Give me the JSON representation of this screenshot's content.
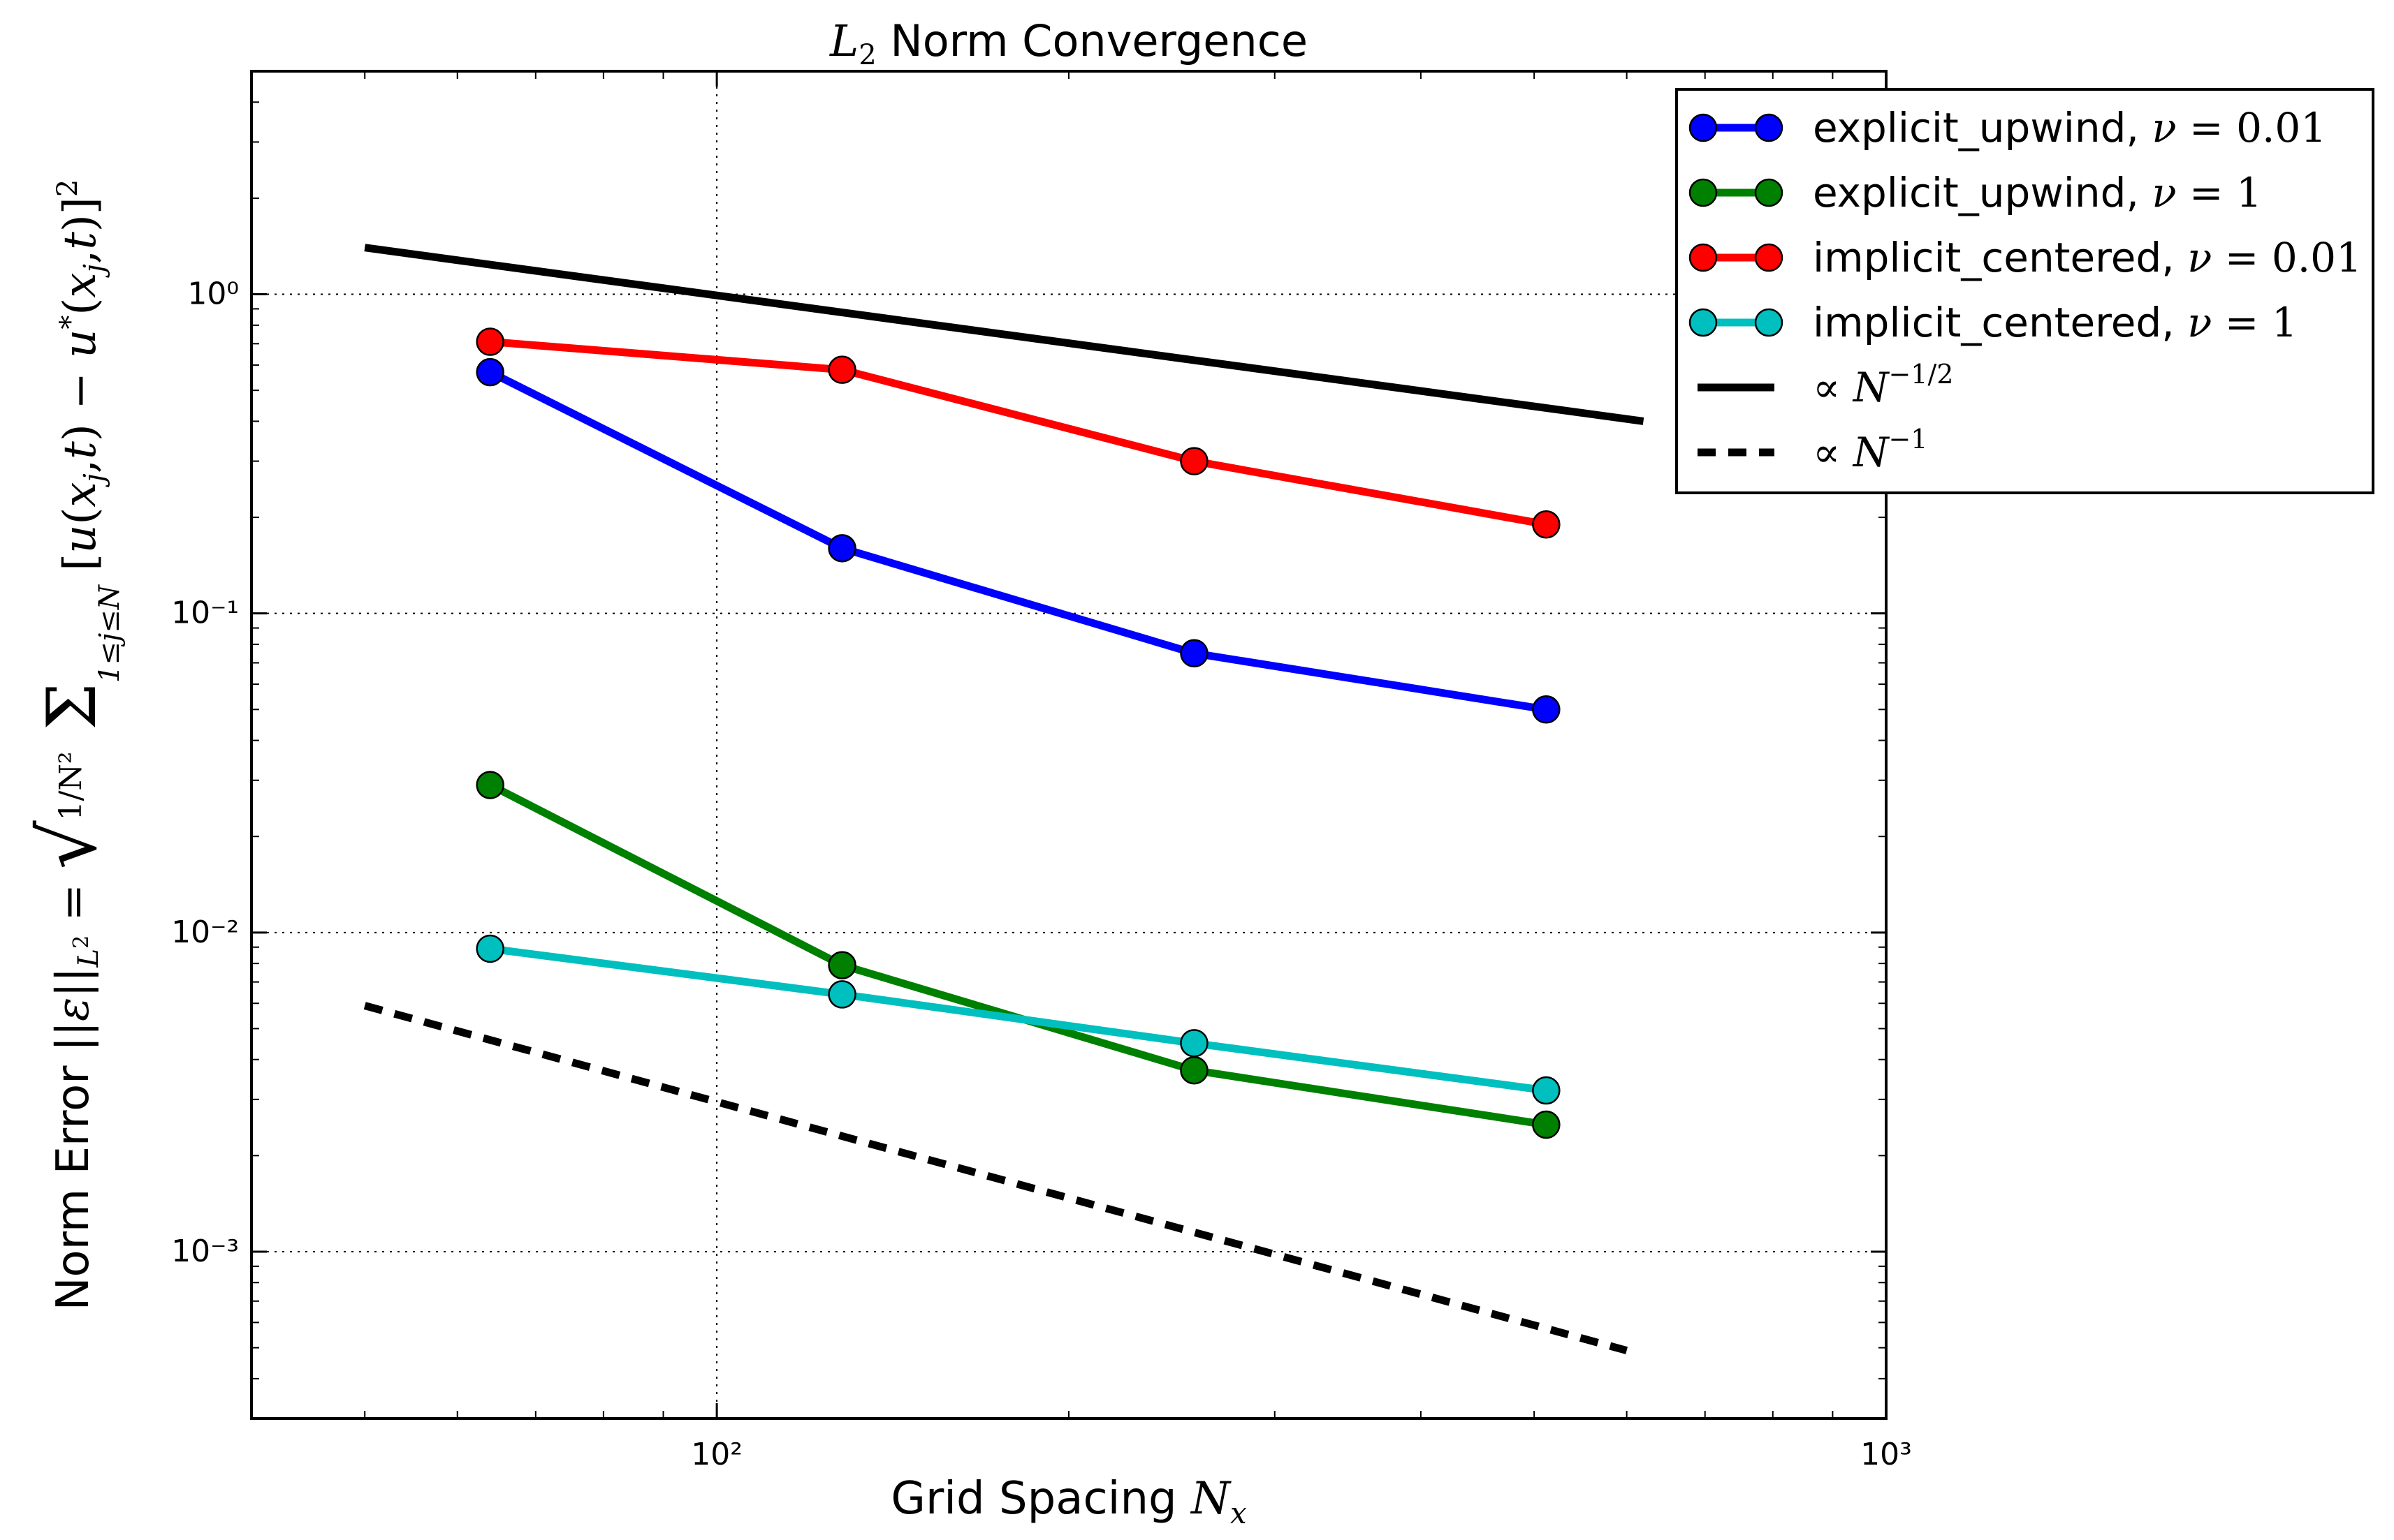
{
  "chart_data": {
    "type": "line",
    "title": "L₂ Norm Convergence",
    "xlabel": "Grid Spacing N_x",
    "ylabel": "Norm Error ||ε||_{L²} = sqrt( 1/N² Σ_{1≤j≤N} [u(x_j,t) − u*(x_j,t)]² )",
    "xscale": "log",
    "yscale": "log",
    "xlim": [
      40,
      1000
    ],
    "ylim": [
      0.0003,
      5
    ],
    "grid": true,
    "legend_position": "top-right, outside the axes",
    "x_ticks": [
      {
        "value": 100,
        "label": "10²"
      },
      {
        "value": 1000,
        "label": "10³"
      }
    ],
    "y_ticks": [
      {
        "value": 1,
        "label": "10⁰"
      },
      {
        "value": 0.1,
        "label": "10⁻¹"
      },
      {
        "value": 0.01,
        "label": "10⁻²"
      },
      {
        "value": 0.001,
        "label": "10⁻³"
      }
    ],
    "series": [
      {
        "name": "explicit_upwind, ν = 0.01",
        "color": "#0000ff",
        "style": "line-marker",
        "x": [
          64,
          128,
          256,
          512
        ],
        "y": [
          0.57,
          0.16,
          0.075,
          0.05
        ]
      },
      {
        "name": "explicit_upwind, ν = 1",
        "color": "#008000",
        "style": "line-marker",
        "x": [
          64,
          128,
          256,
          512
        ],
        "y": [
          0.029,
          0.0079,
          0.0037,
          0.0025
        ]
      },
      {
        "name": "implicit_centered, ν = 0.01",
        "color": "#ff0000",
        "style": "line-marker",
        "x": [
          64,
          128,
          256,
          512
        ],
        "y": [
          0.71,
          0.58,
          0.3,
          0.19
        ]
      },
      {
        "name": "implicit_centered, ν = 1",
        "color": "#00bfbf",
        "style": "line-marker",
        "x": [
          64,
          128,
          256,
          512
        ],
        "y": [
          0.0089,
          0.0064,
          0.0045,
          0.0032
        ]
      },
      {
        "name": "∝ N^(−1/2)",
        "color": "#000000",
        "style": "solid",
        "x": [
          50,
          620
        ],
        "y": [
          1.4,
          0.4
        ]
      },
      {
        "name": "∝ N^(−1)",
        "color": "#000000",
        "style": "dashed",
        "x": [
          50,
          600
        ],
        "y": [
          0.0059,
          0.00049
        ]
      }
    ]
  }
}
